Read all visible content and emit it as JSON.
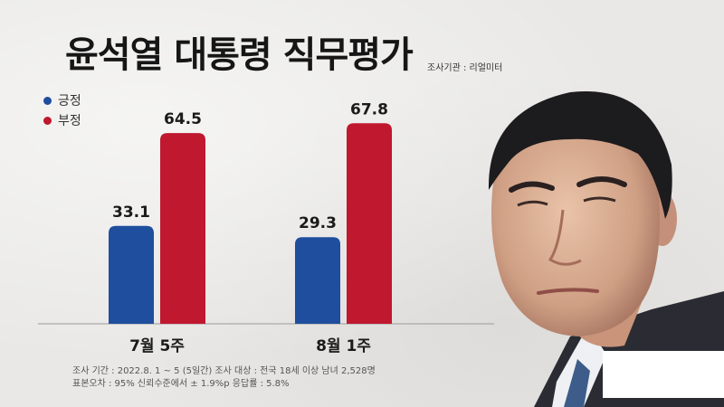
{
  "title": "윤석열 대통령 직무평가",
  "source": "조사기관 : 리얼미터",
  "footnote": {
    "line1": "조사 기간 : 2022.8. 1 ~ 5 (5일간)   조사 대상 : 전국 18세 이상 남녀 2,528명",
    "line2": "표본오차 : 95% 신뢰수준에서 ± 1.9%p   응답률 : 5.8%"
  },
  "colors": {
    "approve": "#1f4e9e",
    "disapprove": "#c0182f"
  },
  "chart_data": {
    "type": "bar",
    "title": "윤석열 대통령 직무평가",
    "categories": [
      "7월 5주",
      "8월 1주"
    ],
    "series": [
      {
        "name": "긍정",
        "values": [
          33.1,
          29.3
        ]
      },
      {
        "name": "부정",
        "values": [
          64.5,
          67.8
        ]
      }
    ],
    "ylim": [
      0,
      80
    ],
    "grid": false,
    "legend": "top-left"
  }
}
